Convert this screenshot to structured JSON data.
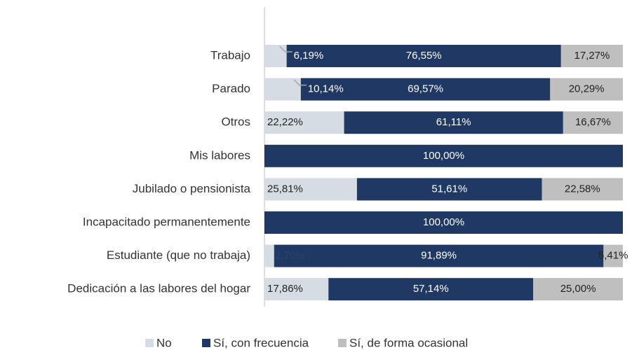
{
  "chart_data": {
    "type": "stacked-bar-horizontal",
    "categories": [
      "Trabajo",
      "Parado",
      "Otros",
      "Mis labores",
      "Jubilado o pensionista",
      "Incapacitado permanentemente",
      "Estudiante (que no trabaja)",
      "Dedicación a las labores del hogar"
    ],
    "xlim": [
      0,
      100
    ],
    "series": [
      {
        "name": "No",
        "color": "#d6dce4",
        "values": [
          6.19,
          10.14,
          22.22,
          0,
          25.81,
          0,
          2.7,
          17.86
        ],
        "value_labels": [
          "6,19%",
          "10,14%",
          "22,22%",
          null,
          "25,81%",
          null,
          "2,70%",
          "17,86%"
        ]
      },
      {
        "name": "Sí, con frecuencia",
        "color": "#1f3864",
        "values": [
          76.55,
          69.57,
          61.11,
          100,
          51.61,
          100,
          91.89,
          57.14
        ],
        "value_labels": [
          "76,55%",
          "69,57%",
          "61,11%",
          "100,00%",
          "51,61%",
          "100,00%",
          "91,89%",
          "57,14%"
        ]
      },
      {
        "name": "Sí, de forma ocasional",
        "color": "#bfbfbf",
        "values": [
          17.27,
          20.29,
          16.67,
          0,
          22.58,
          0,
          5.41,
          25.0
        ],
        "value_labels": [
          "17,27%",
          "20,29%",
          "16,67%",
          null,
          "22,58%",
          null,
          "5,41%",
          "25,00%"
        ]
      }
    ],
    "legend": "bottom"
  }
}
